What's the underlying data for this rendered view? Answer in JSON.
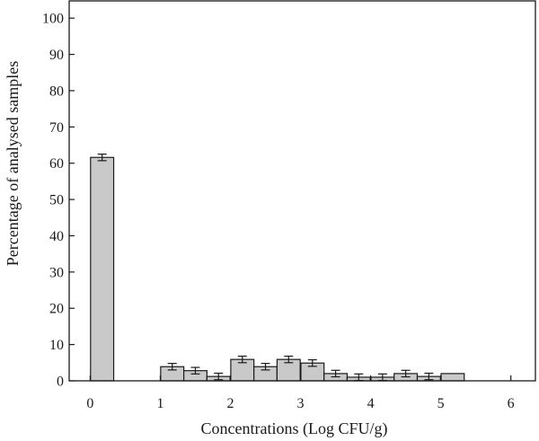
{
  "chart_data": {
    "type": "bar",
    "title": "",
    "xlabel": "Concentrations (Log CFU/g)",
    "ylabel": "Percentage of analysed samples",
    "xlim": [
      -0.3,
      6.35
    ],
    "ylim": [
      0,
      105
    ],
    "xticks": [
      "0",
      "1",
      "2",
      "3",
      "4",
      "5",
      "6"
    ],
    "yticks": [
      "0",
      "10",
      "20",
      "30",
      "40",
      "50",
      "60",
      "70",
      "80",
      "90",
      "100"
    ],
    "bar_width": 0.33,
    "x": [
      0.17,
      1.17,
      1.5,
      1.83,
      2.17,
      2.5,
      2.83,
      3.17,
      3.5,
      3.83,
      4.17,
      4.5,
      4.83,
      5.17
    ],
    "values": [
      61.6,
      3.9,
      2.8,
      1.2,
      5.9,
      3.9,
      5.9,
      4.9,
      2.0,
      1.0,
      1.0,
      2.0,
      1.2,
      2.0
    ],
    "errors": [
      0.9,
      0.9,
      0.9,
      0.9,
      0.9,
      0.9,
      0.9,
      0.9,
      0.9,
      0.9,
      0.9,
      0.9,
      0.9,
      0.0
    ],
    "grid": false,
    "legend": "none",
    "colors": {
      "bar_fill": "#c9c9c9",
      "bar_edge": "#1a1a1a"
    }
  }
}
